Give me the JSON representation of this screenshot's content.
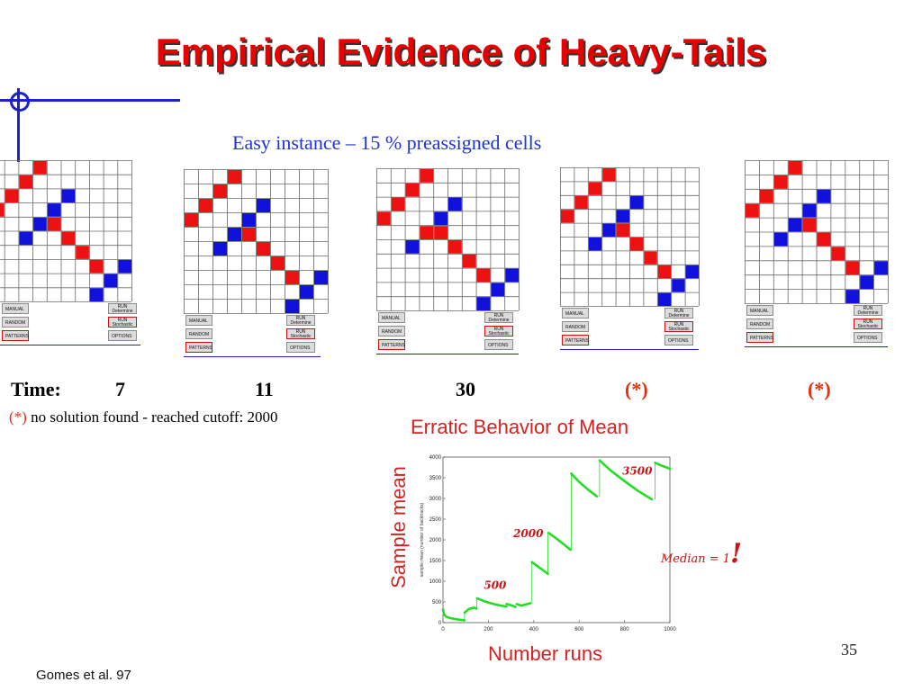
{
  "slide": {
    "title": "Empirical Evidence of Heavy-Tails",
    "subtitle": "Easy instance – 15 % preassigned cells",
    "page_number": "35",
    "citation": "Gomes et al. 97",
    "accent_color": "#e60000",
    "blue_color": "#1f35cc"
  },
  "panels": {
    "buttons": {
      "manual": "MANUAL",
      "random": "RANDOM",
      "patterns": "PATTERNS",
      "run_det_1": "RUN",
      "run_det_2": "Determine",
      "run_sto_1": "RUN",
      "run_sto_2": "Stochastic",
      "options": "OPTIONS"
    },
    "cell_colors": {
      "red": "#ee1111",
      "blue": "#1111dd",
      "grid": "#6a6a6a"
    }
  },
  "times": {
    "label": "Time:",
    "t1": "7",
    "t2": "11",
    "t3": "30",
    "t4": "(*)",
    "t5": "(*)"
  },
  "footnote": {
    "marker": "(*)",
    "text": " no solution found - reached cutoff: 2000"
  },
  "chart_data": {
    "type": "line",
    "title": "Erratic Behavior of Mean",
    "ylabel": "Sample mean",
    "xlabel": "Number runs",
    "inner_ylabel": "sample mean (number of backtracks)",
    "xlim": [
      0,
      1000
    ],
    "ylim": [
      0,
      4000
    ],
    "xticks": [
      0,
      200,
      400,
      600,
      800,
      1000
    ],
    "yticks": [
      0,
      500,
      1000,
      1500,
      2000,
      2500,
      3000,
      3500,
      4000
    ],
    "line_color": "#22dd22",
    "annotations": [
      {
        "text": "500",
        "x": 180,
        "y": 820
      },
      {
        "text": "2000",
        "x": 310,
        "y": 2060
      },
      {
        "text": "3500",
        "x": 790,
        "y": 3580
      }
    ],
    "median_note": "Median = 1",
    "median_bang": "!",
    "segments": [
      [
        [
          0,
          320
        ],
        [
          4,
          210
        ],
        [
          12,
          150
        ],
        [
          30,
          110
        ],
        [
          60,
          80
        ],
        [
          95,
          55
        ]
      ],
      [
        [
          95,
          240
        ],
        [
          115,
          330
        ],
        [
          135,
          360
        ],
        [
          148,
          340
        ]
      ],
      [
        [
          150,
          590
        ],
        [
          180,
          520
        ],
        [
          215,
          460
        ],
        [
          255,
          410
        ],
        [
          280,
          390
        ]
      ],
      [
        [
          280,
          450
        ],
        [
          300,
          420
        ],
        [
          320,
          380
        ]
      ],
      [
        [
          325,
          450
        ],
        [
          345,
          410
        ],
        [
          365,
          440
        ],
        [
          385,
          470
        ]
      ],
      [
        [
          392,
          1460
        ],
        [
          420,
          1350
        ],
        [
          445,
          1250
        ],
        [
          462,
          1180
        ]
      ],
      [
        [
          465,
          2170
        ],
        [
          500,
          2030
        ],
        [
          535,
          1880
        ],
        [
          562,
          1760
        ]
      ],
      [
        [
          565,
          3600
        ],
        [
          600,
          3400
        ],
        [
          640,
          3210
        ],
        [
          678,
          3050
        ]
      ],
      [
        [
          690,
          3920
        ],
        [
          740,
          3670
        ],
        [
          800,
          3420
        ],
        [
          860,
          3180
        ],
        [
          920,
          2980
        ]
      ],
      [
        [
          935,
          3860
        ],
        [
          960,
          3800
        ],
        [
          990,
          3740
        ],
        [
          1000,
          3710
        ]
      ]
    ],
    "jumps": [
      [
        95,
        55,
        240
      ],
      [
        148,
        340,
        590
      ],
      [
        392,
        470,
        1460
      ],
      [
        462,
        1180,
        2170
      ],
      [
        565,
        1760,
        3600
      ],
      [
        690,
        3050,
        3920
      ],
      [
        935,
        2980,
        3860
      ]
    ]
  }
}
